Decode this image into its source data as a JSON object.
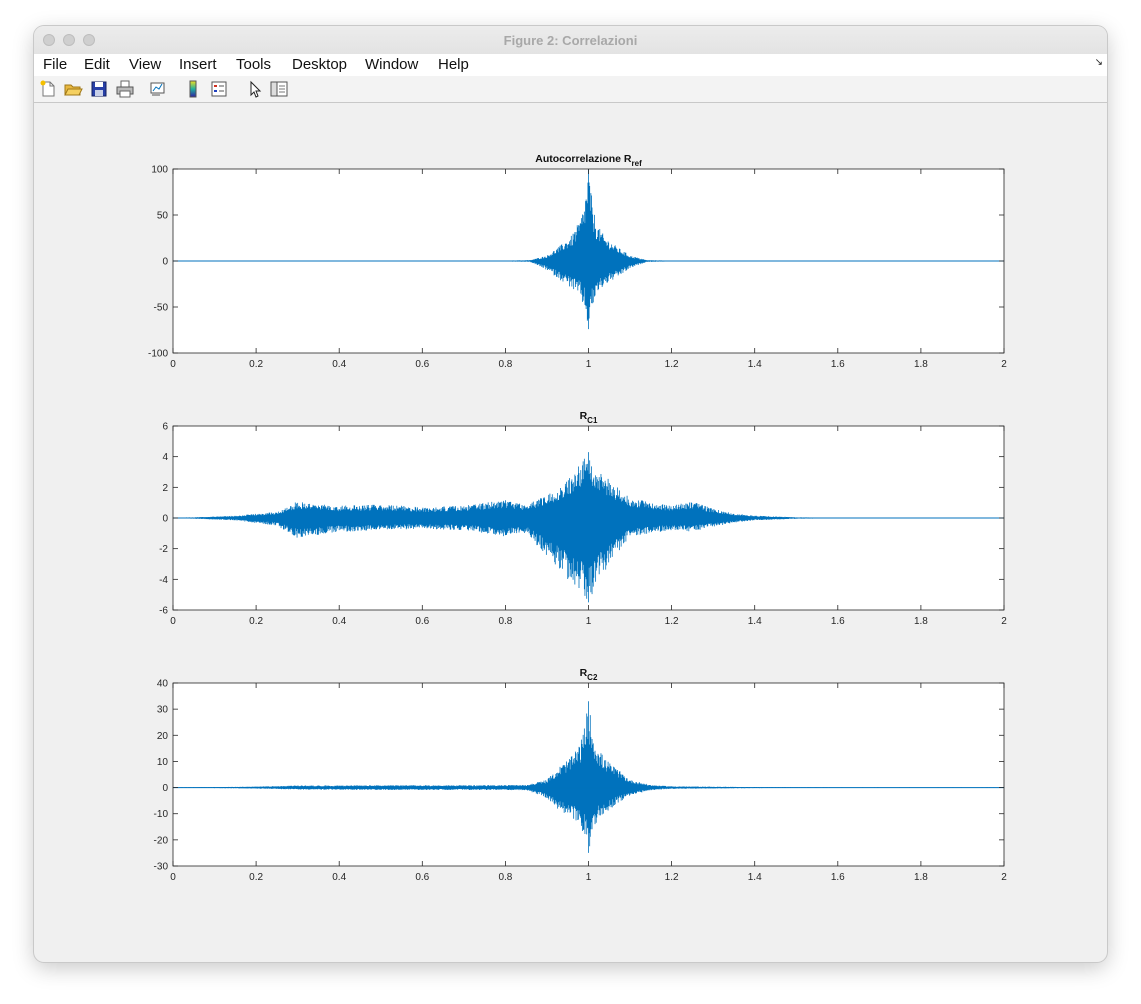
{
  "window": {
    "title": "Figure 2: Correlazioni"
  },
  "menu": {
    "items": [
      "File",
      "Edit",
      "View",
      "Insert",
      "Tools",
      "Desktop",
      "Window",
      "Help"
    ]
  },
  "toolbar": {
    "buttons": [
      "new-figure-icon",
      "open-file-icon",
      "save-icon",
      "print-icon",
      "link-plot-icon",
      "colorbar-icon",
      "legend-icon",
      "pointer-icon",
      "property-inspector-icon"
    ]
  },
  "colors": {
    "line": "#0072bd"
  },
  "chart_data": [
    {
      "type": "line",
      "title": "Autocorrelazione R",
      "title_sub": "ref",
      "xlim": [
        0,
        2
      ],
      "ylim": [
        -100,
        100
      ],
      "xticks": [
        0,
        0.2,
        0.4,
        0.6,
        0.8,
        1,
        1.2,
        1.4,
        1.6,
        1.8,
        2
      ],
      "xticklabels": [
        "0",
        "0.2",
        "0.4",
        "0.6",
        "0.8",
        "1",
        "1.2",
        "1.4",
        "1.6",
        "1.8",
        "2"
      ],
      "yticks": [
        -100,
        -50,
        0,
        50,
        100
      ],
      "yticklabels": [
        "-100",
        "-50",
        "0",
        "50",
        "100"
      ],
      "envelope": {
        "x": [
          0,
          0.2,
          0.4,
          0.6,
          0.8,
          0.86,
          0.9,
          0.93,
          0.96,
          0.98,
          0.99,
          1.0,
          1.01,
          1.02,
          1.04,
          1.07,
          1.1,
          1.14,
          1.2,
          1.4,
          1.6,
          1.8,
          2
        ],
        "upper": [
          0.3,
          0.3,
          0.3,
          0.3,
          0.5,
          1,
          6,
          16,
          28,
          45,
          62,
          100,
          60,
          40,
          26,
          15,
          6,
          1,
          0.5,
          0.3,
          0.3,
          0.3,
          0.3
        ],
        "lower": [
          -0.3,
          -0.3,
          -0.3,
          -0.3,
          -0.5,
          -1,
          -10,
          -20,
          -30,
          -40,
          -52,
          -74,
          -50,
          -36,
          -26,
          -18,
          -8,
          -1,
          -0.5,
          -0.3,
          -0.3,
          -0.3,
          -0.3
        ]
      }
    },
    {
      "type": "line",
      "title": "R",
      "title_sub": "C1",
      "xlim": [
        0,
        2
      ],
      "ylim": [
        -6,
        6
      ],
      "xticks": [
        0,
        0.2,
        0.4,
        0.6,
        0.8,
        1,
        1.2,
        1.4,
        1.6,
        1.8,
        2
      ],
      "xticklabels": [
        "0",
        "0.2",
        "0.4",
        "0.6",
        "0.8",
        "1",
        "1.2",
        "1.4",
        "1.6",
        "1.8",
        "2"
      ],
      "yticks": [
        -6,
        -4,
        -2,
        0,
        2,
        4,
        6
      ],
      "yticklabels": [
        "-6",
        "-4",
        "-2",
        "0",
        "2",
        "4",
        "6"
      ],
      "envelope": {
        "x": [
          0,
          0.05,
          0.15,
          0.25,
          0.3,
          0.35,
          0.4,
          0.5,
          0.6,
          0.7,
          0.8,
          0.85,
          0.9,
          0.95,
          0.98,
          1.0,
          1.02,
          1.05,
          1.1,
          1.2,
          1.25,
          1.3,
          1.35,
          1.4,
          1.5,
          1.6,
          2
        ],
        "upper": [
          0.02,
          0.05,
          0.15,
          0.4,
          1.1,
          0.9,
          0.8,
          0.9,
          0.7,
          0.8,
          1.2,
          0.9,
          1.5,
          2.6,
          3.5,
          4.3,
          3.2,
          2.5,
          1.3,
          0.8,
          1.1,
          0.6,
          0.3,
          0.15,
          0.05,
          0.02,
          0.01
        ],
        "lower": [
          -0.02,
          -0.05,
          -0.15,
          -0.5,
          -1.3,
          -1.1,
          -0.9,
          -0.8,
          -0.7,
          -0.8,
          -1.2,
          -1.0,
          -2.5,
          -4.0,
          -5.0,
          -5.5,
          -4.3,
          -3.0,
          -1.2,
          -0.8,
          -0.9,
          -0.6,
          -0.3,
          -0.15,
          -0.05,
          -0.02,
          -0.01
        ]
      }
    },
    {
      "type": "line",
      "title": "R",
      "title_sub": "C2",
      "xlim": [
        0,
        2
      ],
      "ylim": [
        -30,
        40
      ],
      "xticks": [
        0,
        0.2,
        0.4,
        0.6,
        0.8,
        1,
        1.2,
        1.4,
        1.6,
        1.8,
        2
      ],
      "xticklabels": [
        "0",
        "0.2",
        "0.4",
        "0.6",
        "0.8",
        "1",
        "1.2",
        "1.4",
        "1.6",
        "1.8",
        "2"
      ],
      "yticks": [
        -30,
        -20,
        -10,
        0,
        10,
        20,
        30,
        40
      ],
      "yticklabels": [
        "-30",
        "-20",
        "-10",
        "0",
        "10",
        "20",
        "30",
        "40"
      ],
      "envelope": {
        "x": [
          0,
          0.1,
          0.2,
          0.3,
          0.5,
          0.7,
          0.85,
          0.9,
          0.93,
          0.96,
          0.98,
          0.99,
          1.0,
          1.01,
          1.02,
          1.04,
          1.07,
          1.1,
          1.15,
          1.2,
          1.4,
          1.6,
          2
        ],
        "upper": [
          0.1,
          0.2,
          0.4,
          0.8,
          0.9,
          0.9,
          1,
          3,
          8,
          12,
          17,
          23,
          33,
          22,
          16,
          11,
          7,
          3,
          1,
          0.5,
          0.2,
          0.1,
          0.1
        ],
        "lower": [
          -0.1,
          -0.2,
          -0.4,
          -0.8,
          -0.9,
          -0.9,
          -1,
          -4,
          -9,
          -12,
          -15,
          -18,
          -25,
          -17,
          -13,
          -10,
          -6,
          -3,
          -1,
          -0.5,
          -0.2,
          -0.1,
          -0.1
        ]
      }
    }
  ]
}
